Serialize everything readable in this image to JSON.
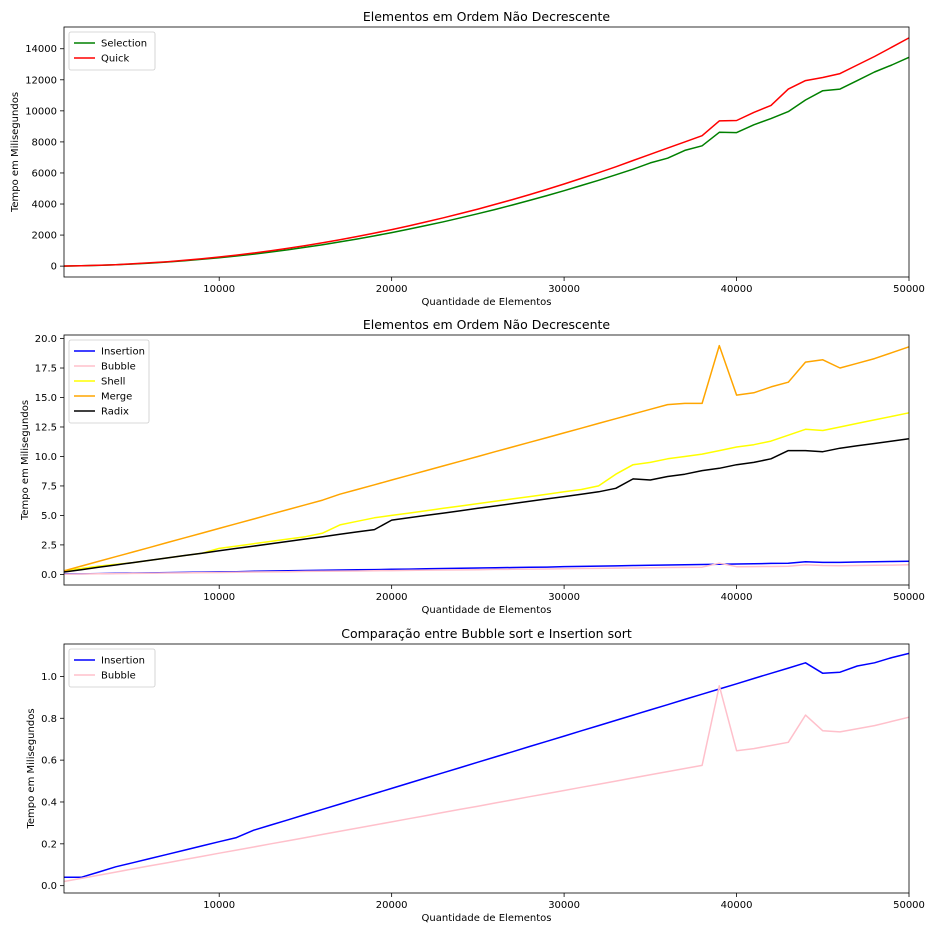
{
  "chart_data": [
    {
      "type": "line",
      "title": "Elementos em Ordem Não Decrescente",
      "xlabel": "Quantidade de Elementos",
      "ylabel": "Tempo em Milisegundos",
      "xlim": [
        1000,
        50000
      ],
      "ylim": [
        -700,
        15400
      ],
      "xticks": [
        10000,
        20000,
        30000,
        40000,
        50000
      ],
      "yticks": [
        0,
        2000,
        4000,
        6000,
        8000,
        10000,
        12000,
        14000
      ],
      "ytick_labels": [
        "0",
        "2000",
        "4000",
        "6000",
        "8000",
        "10000",
        "12000",
        "14000"
      ],
      "grid": false,
      "legend_position": "upper-left",
      "x": [
        1000,
        2000,
        3000,
        4000,
        5000,
        6000,
        7000,
        8000,
        9000,
        10000,
        11000,
        12000,
        13000,
        14000,
        15000,
        16000,
        17000,
        18000,
        19000,
        20000,
        21000,
        22000,
        23000,
        24000,
        25000,
        26000,
        27000,
        28000,
        29000,
        30000,
        31000,
        32000,
        33000,
        34000,
        35000,
        36000,
        37000,
        38000,
        39000,
        40000,
        41000,
        42000,
        43000,
        44000,
        45000,
        46000,
        47000,
        48000,
        49000,
        50000
      ],
      "series": [
        {
          "name": "Selection",
          "color": "#008000",
          "values": [
            5,
            22,
            48,
            86,
            135,
            194,
            264,
            345,
            437,
            540,
            653,
            777,
            912,
            1058,
            1215,
            1382,
            1561,
            1750,
            1950,
            2160,
            2382,
            2614,
            2857,
            3110,
            3375,
            3650,
            3937,
            4234,
            4542,
            4860,
            5190,
            5530,
            5882,
            6244,
            6650,
            6950,
            7450,
            7750,
            8620,
            8600,
            9100,
            9500,
            9950,
            10700,
            11300,
            11400,
            11950,
            12500,
            12950,
            13450
          ]
        },
        {
          "name": "Quick",
          "color": "#ff0000",
          "values": [
            6,
            24,
            53,
            94,
            147,
            212,
            288,
            376,
            476,
            588,
            712,
            847,
            994,
            1153,
            1324,
            1506,
            1700,
            1906,
            2124,
            2353,
            2594,
            2847,
            3111,
            3388,
            3675,
            3975,
            4286,
            4609,
            4944,
            5290,
            5648,
            6018,
            6400,
            6800,
            7200,
            7600,
            8000,
            8400,
            9350,
            9380,
            9900,
            10350,
            11400,
            11950,
            12150,
            12400,
            12950,
            13500,
            14100,
            14700
          ]
        }
      ]
    },
    {
      "type": "line",
      "title": "Elementos em Ordem Não Decrescente",
      "xlabel": "Quantidade de Elementos",
      "ylabel": "Tempo em Milisegundos",
      "xlim": [
        1000,
        50000
      ],
      "ylim": [
        -0.9,
        20.3
      ],
      "xticks": [
        10000,
        20000,
        30000,
        40000,
        50000
      ],
      "yticks": [
        0,
        2.5,
        5,
        7.5,
        10,
        12.5,
        15,
        17.5,
        20
      ],
      "ytick_labels": [
        "0.0",
        "2.5",
        "5.0",
        "7.5",
        "10.0",
        "12.5",
        "15.0",
        "17.5",
        "20.0"
      ],
      "grid": false,
      "legend_position": "upper-left",
      "x": [
        1000,
        2000,
        3000,
        4000,
        5000,
        6000,
        7000,
        8000,
        9000,
        10000,
        11000,
        12000,
        13000,
        14000,
        15000,
        16000,
        17000,
        18000,
        19000,
        20000,
        21000,
        22000,
        23000,
        24000,
        25000,
        26000,
        27000,
        28000,
        29000,
        30000,
        31000,
        32000,
        33000,
        34000,
        35000,
        36000,
        37000,
        38000,
        39000,
        40000,
        41000,
        42000,
        43000,
        44000,
        45000,
        46000,
        47000,
        48000,
        49000,
        50000
      ],
      "series": [
        {
          "name": "Insertion",
          "color": "#0000ff",
          "values": [
            0.04,
            0.04,
            0.07,
            0.09,
            0.11,
            0.13,
            0.15,
            0.17,
            0.19,
            0.21,
            0.23,
            0.27,
            0.29,
            0.31,
            0.33,
            0.35,
            0.37,
            0.39,
            0.41,
            0.43,
            0.45,
            0.48,
            0.5,
            0.52,
            0.54,
            0.56,
            0.58,
            0.6,
            0.62,
            0.66,
            0.68,
            0.7,
            0.72,
            0.75,
            0.78,
            0.8,
            0.82,
            0.84,
            0.86,
            0.88,
            0.9,
            0.93,
            0.95,
            1.07,
            1.02,
            1.02,
            1.05,
            1.07,
            1.09,
            1.11
          ]
        },
        {
          "name": "Bubble",
          "color": "#ffc0cb",
          "values": [
            0.02,
            0.03,
            0.05,
            0.07,
            0.08,
            0.1,
            0.12,
            0.13,
            0.15,
            0.16,
            0.18,
            0.2,
            0.21,
            0.23,
            0.25,
            0.26,
            0.28,
            0.29,
            0.31,
            0.32,
            0.34,
            0.36,
            0.37,
            0.38,
            0.4,
            0.42,
            0.43,
            0.45,
            0.46,
            0.48,
            0.5,
            0.51,
            0.53,
            0.54,
            0.56,
            0.58,
            0.59,
            0.61,
            0.95,
            0.65,
            0.66,
            0.67,
            0.69,
            0.82,
            0.75,
            0.74,
            0.75,
            0.77,
            0.79,
            0.81
          ]
        },
        {
          "name": "Shell",
          "color": "#ffff00",
          "values": [
            0.3,
            0.5,
            0.7,
            0.85,
            1.0,
            1.2,
            1.4,
            1.6,
            1.8,
            2.2,
            2.4,
            2.6,
            2.8,
            3.0,
            3.2,
            3.5,
            4.2,
            4.5,
            4.8,
            5.0,
            5.2,
            5.4,
            5.6,
            5.8,
            6.0,
            6.2,
            6.4,
            6.6,
            6.8,
            7.0,
            7.2,
            7.5,
            8.5,
            9.3,
            9.5,
            9.8,
            10.0,
            10.2,
            10.5,
            10.8,
            11.0,
            11.3,
            11.8,
            12.3,
            12.2,
            12.5,
            12.8,
            13.1,
            13.4,
            13.7
          ]
        },
        {
          "name": "Merge",
          "color": "#ffa500",
          "values": [
            0.3,
            0.7,
            1.1,
            1.5,
            1.9,
            2.3,
            2.7,
            3.1,
            3.5,
            3.9,
            4.3,
            4.7,
            5.1,
            5.5,
            5.9,
            6.3,
            6.8,
            7.2,
            7.6,
            8.0,
            8.4,
            8.8,
            9.2,
            9.6,
            10.0,
            10.4,
            10.8,
            11.2,
            11.6,
            12.0,
            12.4,
            12.8,
            13.2,
            13.6,
            14.0,
            14.4,
            14.5,
            14.5,
            19.4,
            15.2,
            15.4,
            15.9,
            16.3,
            18.0,
            18.2,
            17.5,
            17.9,
            18.3,
            18.8,
            19.3
          ]
        },
        {
          "name": "Radix",
          "color": "#000000",
          "values": [
            0.2,
            0.4,
            0.6,
            0.8,
            1.0,
            1.2,
            1.4,
            1.6,
            1.8,
            2.0,
            2.2,
            2.4,
            2.6,
            2.8,
            3.0,
            3.2,
            3.4,
            3.6,
            3.8,
            4.6,
            4.8,
            5.0,
            5.2,
            5.4,
            5.6,
            5.8,
            6.0,
            6.2,
            6.4,
            6.6,
            6.8,
            7.0,
            7.3,
            8.1,
            8.0,
            8.3,
            8.5,
            8.8,
            9.0,
            9.3,
            9.5,
            9.8,
            10.5,
            10.5,
            10.4,
            10.7,
            10.9,
            11.1,
            11.3,
            11.5
          ]
        }
      ]
    },
    {
      "type": "line",
      "title": "Comparação entre Bubble sort e Insertion sort",
      "xlabel": "Quantidade de Elementos",
      "ylabel": "Tempo em Milisegundos",
      "xlim": [
        1000,
        50000
      ],
      "ylim": [
        -0.035,
        1.155
      ],
      "xticks": [
        10000,
        20000,
        30000,
        40000,
        50000
      ],
      "yticks": [
        0,
        0.2,
        0.4,
        0.6,
        0.8,
        1.0
      ],
      "ytick_labels": [
        "0.0",
        "0.2",
        "0.4",
        "0.6",
        "0.8",
        "1.0"
      ],
      "grid": false,
      "legend_position": "upper-left",
      "x": [
        1000,
        2000,
        3000,
        4000,
        5000,
        6000,
        7000,
        8000,
        9000,
        10000,
        11000,
        12000,
        13000,
        14000,
        15000,
        16000,
        17000,
        18000,
        19000,
        20000,
        21000,
        22000,
        23000,
        24000,
        25000,
        26000,
        27000,
        28000,
        29000,
        30000,
        31000,
        32000,
        33000,
        34000,
        35000,
        36000,
        37000,
        38000,
        39000,
        40000,
        41000,
        42000,
        43000,
        44000,
        45000,
        46000,
        47000,
        48000,
        49000,
        50000
      ],
      "series": [
        {
          "name": "Insertion",
          "color": "#0000ff",
          "values": [
            0.04,
            0.04,
            0.065,
            0.09,
            0.11,
            0.13,
            0.15,
            0.17,
            0.19,
            0.21,
            0.23,
            0.265,
            0.29,
            0.315,
            0.34,
            0.365,
            0.39,
            0.415,
            0.44,
            0.465,
            0.49,
            0.515,
            0.54,
            0.565,
            0.59,
            0.615,
            0.64,
            0.665,
            0.69,
            0.715,
            0.74,
            0.765,
            0.79,
            0.815,
            0.84,
            0.865,
            0.89,
            0.915,
            0.94,
            0.965,
            0.99,
            1.015,
            1.04,
            1.065,
            1.015,
            1.02,
            1.05,
            1.065,
            1.09,
            1.11
          ]
        },
        {
          "name": "Bubble",
          "color": "#ffc0cb",
          "values": [
            0.02,
            0.035,
            0.05,
            0.065,
            0.08,
            0.095,
            0.11,
            0.125,
            0.14,
            0.155,
            0.17,
            0.185,
            0.2,
            0.215,
            0.23,
            0.245,
            0.26,
            0.275,
            0.29,
            0.305,
            0.32,
            0.335,
            0.35,
            0.365,
            0.38,
            0.395,
            0.41,
            0.425,
            0.44,
            0.455,
            0.47,
            0.485,
            0.5,
            0.515,
            0.53,
            0.545,
            0.56,
            0.575,
            0.955,
            0.645,
            0.655,
            0.67,
            0.685,
            0.815,
            0.74,
            0.735,
            0.75,
            0.765,
            0.785,
            0.805
          ]
        }
      ]
    }
  ]
}
